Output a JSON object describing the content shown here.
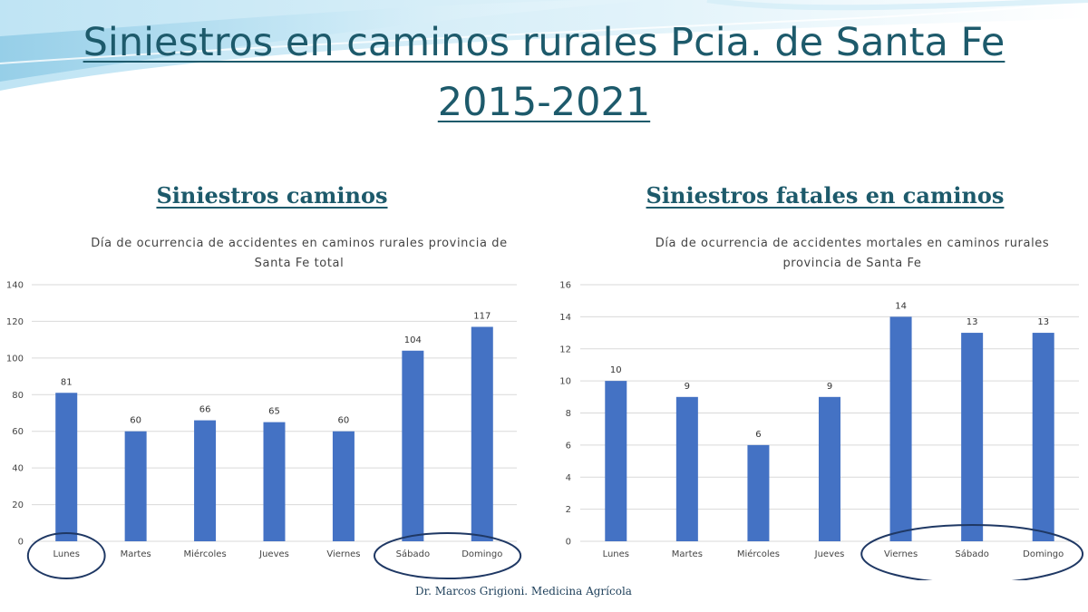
{
  "slide": {
    "title_line1": "Siniestros en caminos rurales Pcia. de Santa Fe",
    "title_line2": "2015-2021",
    "footer": "Dr. Marcos Grigioni. Medicina Agrícola",
    "colors": {
      "title": "#1d5a6b",
      "bar": "#4472c4",
      "highlight_ellipse": "#1f3864",
      "grid": "#d9d9d9"
    }
  },
  "sections": {
    "left": "Siniestros caminos",
    "right": "Siniestros fatales en caminos"
  },
  "chart_data": [
    {
      "type": "bar",
      "title": "Día de ocurrencia de accidentes en caminos rurales provincia de Santa Fe total",
      "title_lines": [
        "Día de ocurrencia de accidentes en caminos rurales provincia de",
        "Santa Fe total"
      ],
      "categories": [
        "Lunes",
        "Martes",
        "Miércoles",
        "Jueves",
        "Viernes",
        "Sábado",
        "Domingo"
      ],
      "values": [
        81,
        60,
        66,
        65,
        60,
        104,
        117
      ],
      "ylim": [
        0,
        140
      ],
      "yticks": [
        0,
        20,
        40,
        60,
        80,
        100,
        120,
        140
      ],
      "data_labels": true,
      "grid": true,
      "legend": "none",
      "highlighted": [
        [
          "Lunes"
        ],
        [
          "Sábado",
          "Domingo"
        ]
      ]
    },
    {
      "type": "bar",
      "title": "Día de ocurrencia de accidentes mortales en caminos rurales provincia de Santa Fe",
      "title_lines": [
        "Día de ocurrencia de accidentes mortales en caminos rurales",
        "provincia de Santa Fe"
      ],
      "categories": [
        "Lunes",
        "Martes",
        "Miércoles",
        "Jueves",
        "Viernes",
        "Sábado",
        "Domingo"
      ],
      "values": [
        10,
        9,
        6,
        9,
        14,
        13,
        13
      ],
      "ylim": [
        0,
        16
      ],
      "yticks": [
        0,
        2,
        4,
        6,
        8,
        10,
        12,
        14,
        16
      ],
      "data_labels": true,
      "grid": true,
      "legend": "none",
      "highlighted": [
        [
          "Viernes",
          "Sábado",
          "Domingo"
        ]
      ]
    }
  ]
}
